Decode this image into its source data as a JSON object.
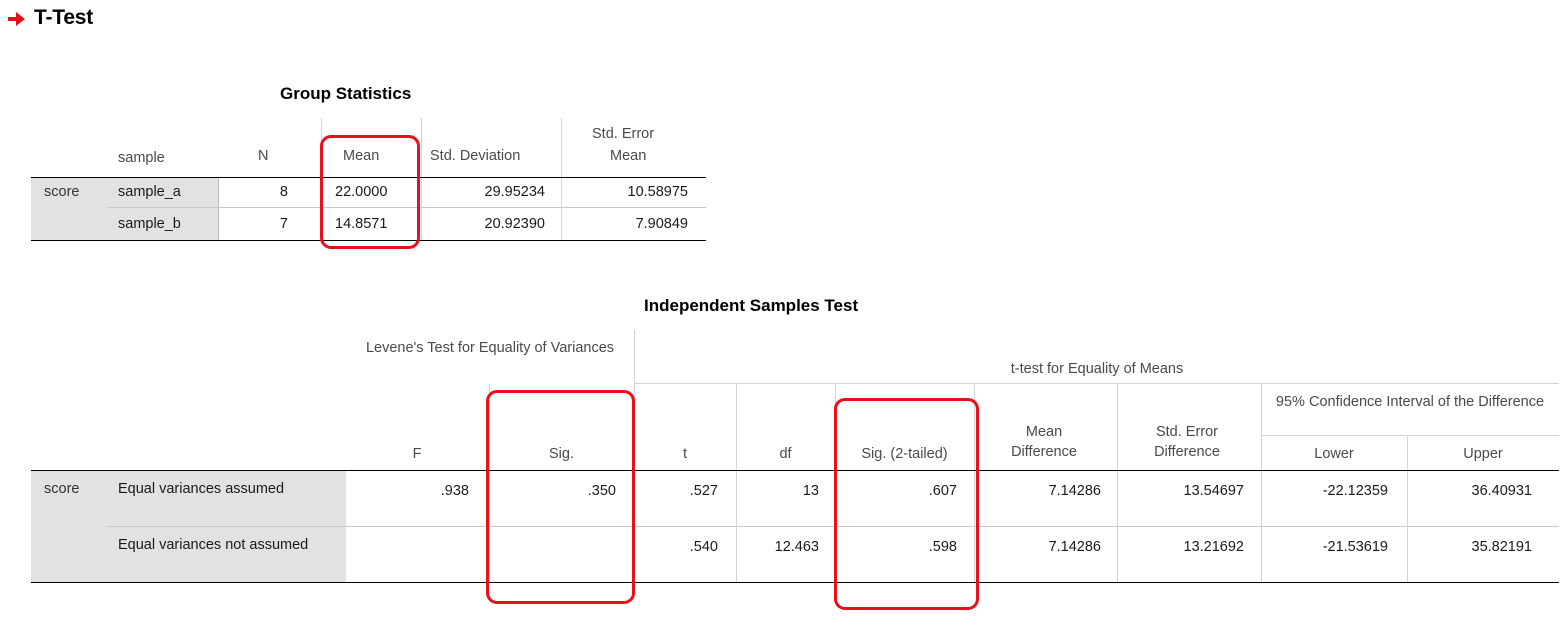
{
  "header": {
    "title": "T-Test",
    "icon": "arrow-right-icon",
    "icon_color": "#e8101a"
  },
  "group_statistics": {
    "title": "Group Statistics",
    "columns": {
      "sample": "sample",
      "n": "N",
      "mean": "Mean",
      "std_dev": "Std. Deviation",
      "std_err_line1": "Std. Error",
      "std_err_line2": "Mean"
    },
    "row_label": "score",
    "rows": [
      {
        "sample": "sample_a",
        "n": "8",
        "mean": "22.0000",
        "std_dev": "29.95234",
        "std_err": "10.58975"
      },
      {
        "sample": "sample_b",
        "n": "7",
        "mean": "14.8571",
        "std_dev": "20.92390",
        "std_err": "7.90849"
      }
    ]
  },
  "independent_samples_test": {
    "title": "Independent Samples Test",
    "levene_header": "Levene's Test for Equality of Variances",
    "ttest_header": "t-test for Equality of Means",
    "ci_header": "95% Confidence Interval of the Difference",
    "columns": {
      "f": "F",
      "sig": "Sig.",
      "t": "t",
      "df": "df",
      "sig_2tailed": "Sig. (2-tailed)",
      "mean_diff": "Mean Difference",
      "se_diff": "Std. Error Difference",
      "lower": "Lower",
      "upper": "Upper"
    },
    "row_label": "score",
    "rows": [
      {
        "label": "Equal variances assumed",
        "f": ".938",
        "sig": ".350",
        "t": ".527",
        "df": "13",
        "sig_2tailed": ".607",
        "mean_diff": "7.14286",
        "se_diff": "13.54697",
        "lower": "-22.12359",
        "upper": "36.40931"
      },
      {
        "label": "Equal variances not assumed",
        "f": "",
        "sig": "",
        "t": ".540",
        "df": "12.463",
        "sig_2tailed": ".598",
        "mean_diff": "7.14286",
        "se_diff": "13.21692",
        "lower": "-21.53619",
        "upper": "35.82191"
      }
    ]
  },
  "annotation_color": "#e8101a"
}
